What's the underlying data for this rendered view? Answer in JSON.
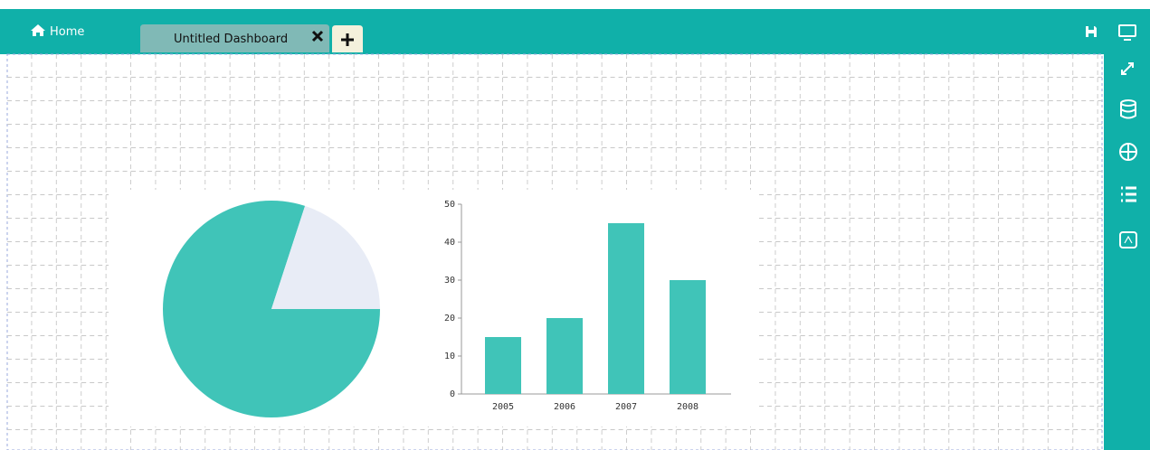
{
  "header": {
    "home": "Home",
    "tab_title": "Untitled Dashboard"
  },
  "chart_data": [
    {
      "type": "pie",
      "values": [
        80,
        20
      ],
      "colors": [
        "#40c4b8",
        "#e8ecf6"
      ]
    },
    {
      "type": "bar",
      "categories": [
        "2005",
        "2006",
        "2007",
        "2008"
      ],
      "values": [
        15,
        20,
        45,
        30
      ],
      "color": "#40c4b8",
      "ylim": [
        0,
        50
      ],
      "yticks": [
        0,
        10,
        20,
        30,
        40,
        50
      ]
    }
  ]
}
